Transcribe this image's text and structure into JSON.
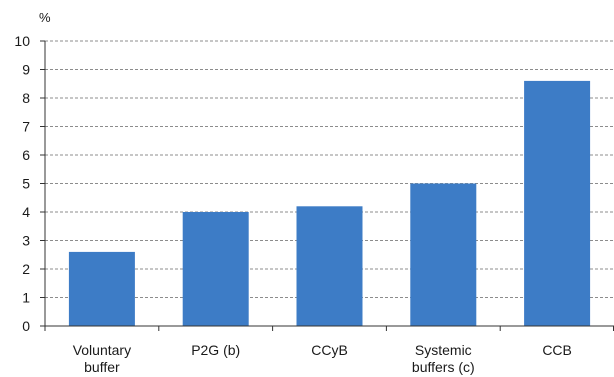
{
  "chart_data": {
    "type": "bar",
    "title": "",
    "xlabel": "",
    "ylabel": "%",
    "ylim": [
      0,
      10
    ],
    "yticks": [
      0,
      1,
      2,
      3,
      4,
      5,
      6,
      7,
      8,
      9,
      10
    ],
    "grid": true,
    "legend": "none",
    "categories": [
      [
        "Voluntary",
        "buffer"
      ],
      [
        "P2G (b)"
      ],
      [
        "CCyB"
      ],
      [
        "Systemic",
        "buffers (c)"
      ],
      [
        "CCB"
      ]
    ],
    "values": [
      2.6,
      4.0,
      4.2,
      5.0,
      8.6
    ],
    "bar_color": "#3d7cc6"
  }
}
